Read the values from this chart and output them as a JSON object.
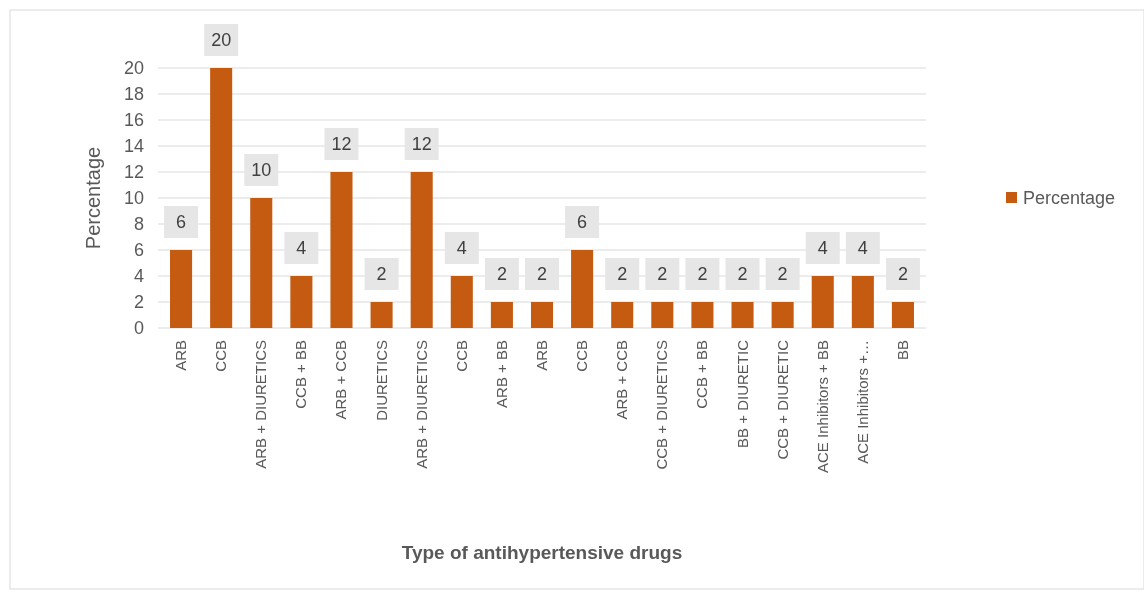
{
  "chart_data": {
    "type": "bar",
    "xlabel": "Type of antihypertensive drugs",
    "ylabel": "Percentage",
    "categories": [
      "ARB",
      "CCB",
      "ARB + DIURETICS",
      "CCB + BB",
      "ARB + CCB",
      "DIURETICS",
      "ARB + DIURETICS",
      "CCB",
      "ARB + BB",
      "ARB",
      "CCB",
      "ARB + CCB",
      "CCB + DIURETICS",
      "CCB + BB",
      "BB + DIURETIC",
      "CCB + DIURETIC",
      "ACE Inhibitors + BB",
      "ACE Inhibitors +…",
      "BB"
    ],
    "series": [
      {
        "name": "Percentage",
        "color": "#c55a11",
        "values": [
          6,
          20,
          10,
          4,
          12,
          2,
          12,
          4,
          2,
          2,
          6,
          2,
          2,
          2,
          2,
          2,
          4,
          4,
          2
        ]
      }
    ],
    "ylim": [
      0,
      20
    ],
    "yticks": [
      0,
      2,
      4,
      6,
      8,
      10,
      12,
      14,
      16,
      18,
      20
    ],
    "grid": "y",
    "legend": "right",
    "data_labels": true
  }
}
